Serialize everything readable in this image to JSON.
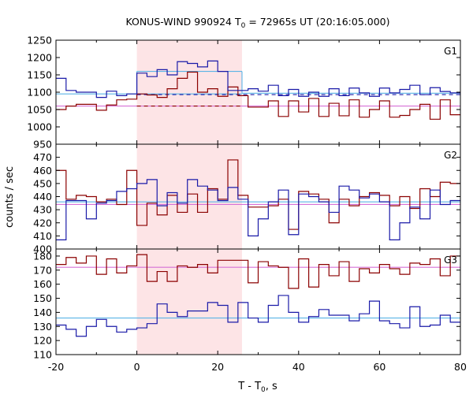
{
  "chart_data": {
    "type": "line",
    "title": "KONUS-WIND 990924 T",
    "title_sub": "0",
    "title_rest": " = 72965s UT (20:16:05.000)",
    "xlabel": "T - T",
    "xlabel_sub": "0",
    "xlabel_rest": ", s",
    "ylabel": "counts / sec",
    "xlim": [
      -20,
      80
    ],
    "xticks": [
      "-20",
      "0",
      "20",
      "40",
      "60",
      "80"
    ],
    "shaded_interval": [
      0,
      26
    ],
    "colors": {
      "red": "#8b0000",
      "blue": "#1a1aa8",
      "cyan": "#5ab4e6",
      "violet": "#d670d6",
      "shade": "#fde4e6"
    },
    "panels": [
      {
        "name": "G1",
        "ylim": [
          950,
          1250
        ],
        "yticks": [
          "950",
          "1000",
          "1050",
          "1100",
          "1150",
          "1200",
          "1250"
        ],
        "series": [
          {
            "color": "red",
            "x": [
              -20,
              -17.5,
              -15,
              -12.5,
              -10,
              -7.5,
              -5,
              -2.5,
              0,
              2.5,
              5,
              7.5,
              10,
              12.5,
              15,
              17.5,
              20,
              22.5,
              25,
              27.5,
              30,
              32.5,
              35,
              37.5,
              40,
              42.5,
              45,
              47.5,
              50,
              52.5,
              55,
              57.5,
              60,
              62.5,
              65,
              67.5,
              70,
              72.5,
              75,
              77.5
            ],
            "y": [
              1050,
              1060,
              1065,
              1065,
              1048,
              1063,
              1078,
              1080,
              1095,
              1092,
              1085,
              1110,
              1140,
              1158,
              1100,
              1110,
              1088,
              1115,
              1090,
              1057,
              1057,
              1075,
              1030,
              1075,
              1043,
              1082,
              1030,
              1068,
              1032,
              1078,
              1028,
              1050,
              1075,
              1028,
              1033,
              1050,
              1065,
              1022,
              1078,
              1035
            ]
          },
          {
            "color": "blue",
            "x": [
              -20,
              -17.5,
              -15,
              -12.5,
              -10,
              -7.5,
              -5,
              -2.5,
              0,
              2.5,
              5,
              7.5,
              10,
              12.5,
              15,
              17.5,
              20,
              22.5,
              25,
              27.5,
              30,
              32.5,
              35,
              37.5,
              40,
              42.5,
              45,
              47.5,
              50,
              52.5,
              55,
              57.5,
              60,
              62.5,
              65,
              67.5,
              70,
              72.5,
              75,
              77.5
            ],
            "y": [
              1140,
              1105,
              1100,
              1100,
              1085,
              1103,
              1090,
              1095,
              1155,
              1145,
              1165,
              1150,
              1188,
              1183,
              1173,
              1190,
              1160,
              1105,
              1105,
              1110,
              1103,
              1120,
              1090,
              1108,
              1088,
              1100,
              1088,
              1110,
              1090,
              1112,
              1098,
              1088,
              1112,
              1098,
              1108,
              1120,
              1093,
              1113,
              1102,
              1098
            ]
          }
        ],
        "backgrounds": [
          {
            "color": "cyan",
            "style": "solid",
            "segments": [
              [
                -20,
                26,
                1095
              ],
              [
                0,
                26,
                1160
              ],
              [
                26,
                80,
                1097
              ]
            ]
          },
          {
            "color": "violet",
            "style": "solid",
            "segments": [
              [
                -20,
                80,
                1060
              ]
            ]
          },
          {
            "color": "red",
            "style": "dashed",
            "segments": [
              [
                0,
                26,
                1060
              ]
            ]
          },
          {
            "color": "blue",
            "style": "dashed",
            "segments": [
              [
                0,
                80,
                1093
              ]
            ]
          }
        ]
      },
      {
        "name": "G2",
        "ylim": [
          400,
          480
        ],
        "yticks": [
          "400",
          "410",
          "420",
          "430",
          "440",
          "450",
          "460",
          "470"
        ],
        "series": [
          {
            "color": "red",
            "x": [
              -20,
              -17.5,
              -15,
              -12.5,
              -10,
              -7.5,
              -5,
              -2.5,
              0,
              2.5,
              5,
              7.5,
              10,
              12.5,
              15,
              17.5,
              20,
              22.5,
              25,
              27.5,
              30,
              32.5,
              35,
              37.5,
              40,
              42.5,
              45,
              47.5,
              50,
              52.5,
              55,
              57.5,
              60,
              62.5,
              65,
              67.5,
              70,
              72.5,
              75,
              77.5
            ],
            "y": [
              460,
              438,
              441,
              440,
              436,
              438,
              434,
              460,
              418,
              435,
              426,
              441,
              428,
              442,
              428,
              446,
              438,
              468,
              441,
              432,
              432,
              433,
              438,
              415,
              444,
              442,
              438,
              420,
              438,
              433,
              440,
              443,
              441,
              433,
              440,
              431,
              446,
              440,
              451,
              450
            ]
          },
          {
            "color": "blue",
            "x": [
              -20,
              -17.5,
              -15,
              -12.5,
              -10,
              -7.5,
              -5,
              -2.5,
              0,
              2.5,
              5,
              7.5,
              10,
              12.5,
              15,
              17.5,
              20,
              22.5,
              25,
              27.5,
              30,
              32.5,
              35,
              37.5,
              40,
              42.5,
              45,
              47.5,
              50,
              52.5,
              55,
              57.5,
              60,
              62.5,
              65,
              67.5,
              70,
              72.5,
              75,
              77.5
            ],
            "y": [
              407,
              437,
              437,
              423,
              435,
              437,
              444,
              446,
              450,
              453,
              433,
              443,
              435,
              453,
              448,
              445,
              437,
              447,
              438,
              410,
              423,
              436,
              445,
              411,
              442,
              440,
              436,
              428,
              448,
              445,
              439,
              442,
              436,
              407,
              420,
              432,
              423,
              445,
              434,
              437
            ]
          }
        ],
        "backgrounds": [
          {
            "color": "cyan",
            "style": "solid",
            "segments": [
              [
                -20,
                80,
                436
              ]
            ]
          },
          {
            "color": "violet",
            "style": "solid",
            "segments": [
              [
                -20,
                80,
                434
              ]
            ]
          }
        ]
      },
      {
        "name": "G3",
        "ylim": [
          110,
          185
        ],
        "yticks": [
          "110",
          "120",
          "130",
          "140",
          "150",
          "160",
          "170",
          "180"
        ],
        "series": [
          {
            "color": "red",
            "x": [
              -20,
              -17.5,
              -15,
              -12.5,
              -10,
              -7.5,
              -5,
              -2.5,
              0,
              2.5,
              5,
              7.5,
              10,
              12.5,
              15,
              17.5,
              20,
              22.5,
              25,
              27.5,
              30,
              32.5,
              35,
              37.5,
              40,
              42.5,
              45,
              47.5,
              50,
              52.5,
              55,
              57.5,
              60,
              62.5,
              65,
              67.5,
              70,
              72.5,
              75,
              77.5
            ],
            "y": [
              174,
              179,
              175,
              180,
              167,
              178,
              168,
              173,
              181,
              162,
              169,
              162,
              173,
              172,
              174,
              168,
              177,
              177,
              177,
              161,
              176,
              173,
              172,
              157,
              178,
              158,
              174,
              166,
              176,
              162,
              171,
              168,
              174,
              171,
              167,
              175,
              174,
              178,
              166,
              180
            ]
          },
          {
            "color": "blue",
            "x": [
              -20,
              -17.5,
              -15,
              -12.5,
              -10,
              -7.5,
              -5,
              -2.5,
              0,
              2.5,
              5,
              7.5,
              10,
              12.5,
              15,
              17.5,
              20,
              22.5,
              25,
              27.5,
              30,
              32.5,
              35,
              37.5,
              40,
              42.5,
              45,
              47.5,
              50,
              52.5,
              55,
              57.5,
              60,
              62.5,
              65,
              67.5,
              70,
              72.5,
              75,
              77.5
            ],
            "y": [
              131,
              128,
              123,
              130,
              135,
              130,
              126,
              128,
              129,
              132,
              146,
              140,
              137,
              141,
              141,
              147,
              145,
              133,
              147,
              136,
              133,
              145,
              152,
              140,
              133,
              137,
              142,
              138,
              138,
              134,
              139,
              148,
              134,
              132,
              129,
              144,
              130,
              131,
              138,
              133
            ]
          }
        ],
        "backgrounds": [
          {
            "color": "cyan",
            "style": "solid",
            "segments": [
              [
                -20,
                80,
                136
              ]
            ]
          },
          {
            "color": "violet",
            "style": "solid",
            "segments": [
              [
                -20,
                80,
                172
              ]
            ]
          }
        ]
      }
    ]
  }
}
